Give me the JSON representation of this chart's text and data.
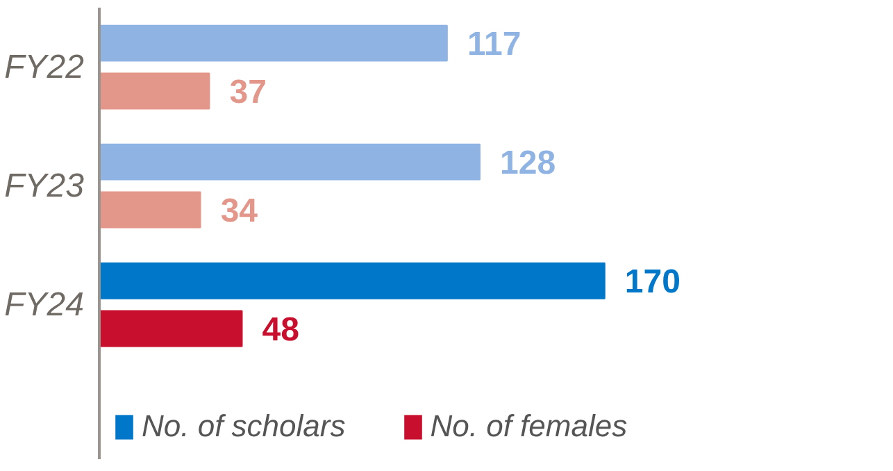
{
  "chart_data": {
    "type": "bar",
    "orientation": "horizontal",
    "categories": [
      "FY22",
      "FY23",
      "FY24"
    ],
    "series": [
      {
        "name": "No. of scholars",
        "color": "#0077c8",
        "colors": [
          "#8fb4e3",
          "#8fb4e3",
          "#0077c8"
        ],
        "values": [
          117,
          128,
          170
        ]
      },
      {
        "name": "No. of females",
        "color": "#c8102e",
        "colors": [
          "#e3968a",
          "#e3968a",
          "#c8102e"
        ],
        "values": [
          37,
          34,
          48
        ]
      }
    ],
    "data_labels": true,
    "legend": "bottom"
  }
}
